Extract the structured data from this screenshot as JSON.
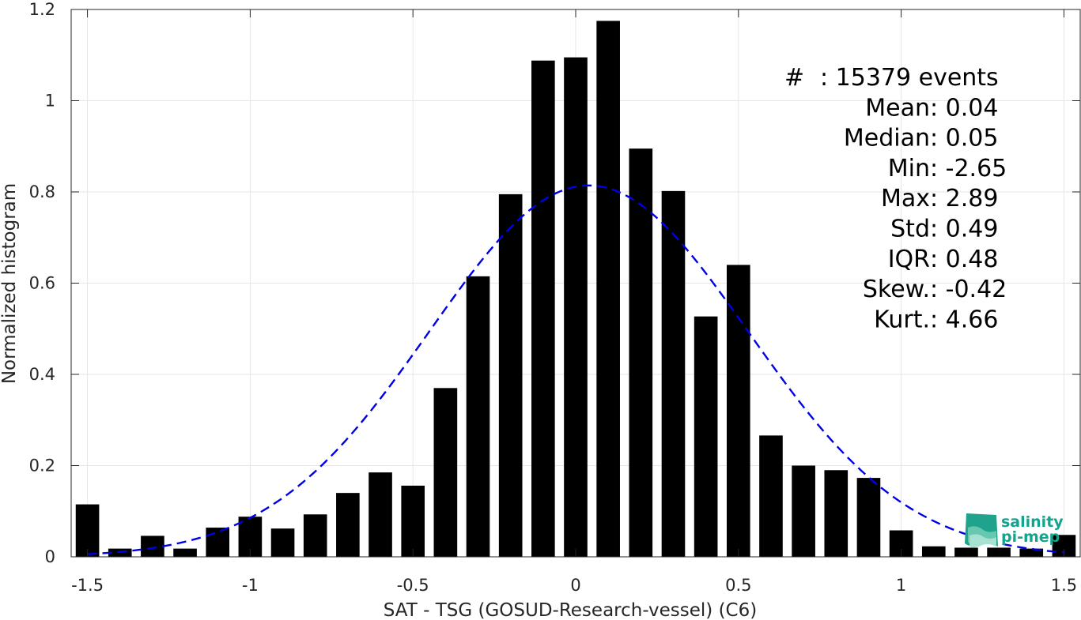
{
  "chart_data": {
    "type": "bar",
    "xlabel": "SAT - TSG (GOSUD-Research-vessel) (C6)",
    "ylabel": "Normalized histogram",
    "xlim": [
      -1.55,
      1.55
    ],
    "ylim": [
      0,
      1.2
    ],
    "xticks": [
      -1.5,
      -1,
      -0.5,
      0,
      0.5,
      1,
      1.5
    ],
    "xtick_labels": [
      "-1.5",
      "-1",
      "-0.5",
      "0",
      "0.5",
      "1",
      "1.5"
    ],
    "yticks": [
      0,
      0.2,
      0.4,
      0.6,
      0.8,
      1,
      1.2
    ],
    "ytick_labels": [
      "0",
      "0.2",
      "0.4",
      "0.6",
      "0.8",
      "1",
      "1.2"
    ],
    "grid": true,
    "bar_color": "#000000",
    "bin_centers": [
      -1.5,
      -1.4,
      -1.3,
      -1.2,
      -1.1,
      -1.0,
      -0.9,
      -0.8,
      -0.7,
      -0.6,
      -0.5,
      -0.4,
      -0.3,
      -0.2,
      -0.1,
      0.0,
      0.1,
      0.2,
      0.3,
      0.4,
      0.5,
      0.6,
      0.7,
      0.8,
      0.9,
      1.0,
      1.1,
      1.2,
      1.3,
      1.4,
      1.5
    ],
    "values": [
      0.115,
      0.018,
      0.046,
      0.018,
      0.064,
      0.088,
      0.062,
      0.093,
      0.14,
      0.185,
      0.156,
      0.37,
      0.615,
      0.795,
      1.088,
      1.095,
      1.175,
      0.895,
      0.802,
      0.527,
      0.64,
      0.266,
      0.2,
      0.19,
      0.173,
      0.058,
      0.023,
      0.02,
      0.02,
      0.018,
      0.048
    ],
    "fit_curve": {
      "type": "gaussian",
      "mean": 0.04,
      "std": 0.49,
      "color": "#0000e6",
      "style": "dashed"
    }
  },
  "stats": [
    {
      "label": "#  ",
      "value": ": 15379 events"
    },
    {
      "label": "Mean ",
      "value": ": 0.04"
    },
    {
      "label": "Median ",
      "value": ": 0.05"
    },
    {
      "label": "Min ",
      "value": ": -2.65"
    },
    {
      "label": "Max ",
      "value": ": 2.89"
    },
    {
      "label": "Std ",
      "value": ": 0.49"
    },
    {
      "label": "IQR ",
      "value": ": 0.48"
    },
    {
      "label": "Skew. ",
      "value": ": -0.42"
    },
    {
      "label": "Kurt. ",
      "value": ": 4.66"
    }
  ],
  "logo": {
    "line1": "salinity",
    "line2": "pi-mep"
  }
}
